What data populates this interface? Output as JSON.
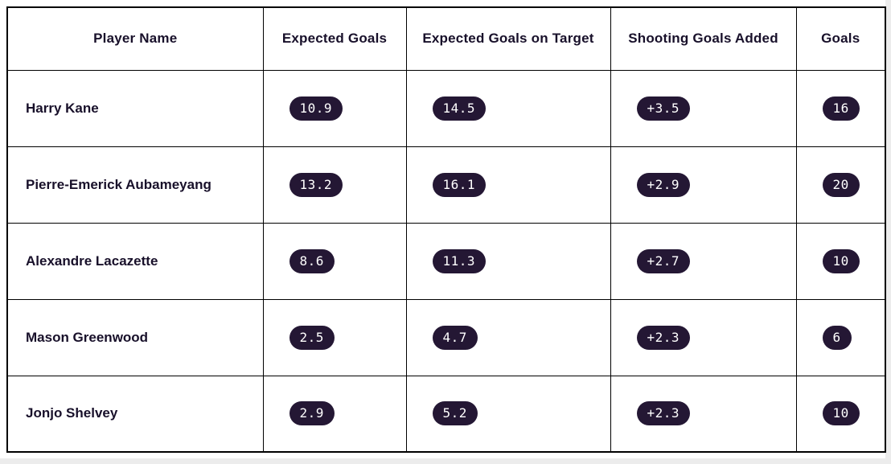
{
  "chart_data": {
    "type": "table",
    "columns": [
      "Player Name",
      "Expected Goals",
      "Expected Goals on Target",
      "Shooting Goals Added",
      "Goals"
    ],
    "rows": [
      {
        "player_name": "Harry Kane",
        "expected_goals": "10.9",
        "expected_goals_on_target": "14.5",
        "shooting_goals_added": "+3.5",
        "goals": "16"
      },
      {
        "player_name": "Pierre-Emerick Aubameyang",
        "expected_goals": "13.2",
        "expected_goals_on_target": "16.1",
        "shooting_goals_added": "+2.9",
        "goals": "20"
      },
      {
        "player_name": "Alexandre Lacazette",
        "expected_goals": "8.6",
        "expected_goals_on_target": "11.3",
        "shooting_goals_added": "+2.7",
        "goals": "10"
      },
      {
        "player_name": "Mason Greenwood",
        "expected_goals": "2.5",
        "expected_goals_on_target": "4.7",
        "shooting_goals_added": "+2.3",
        "goals": "6"
      },
      {
        "player_name": "Jonjo Shelvey",
        "expected_goals": "2.9",
        "expected_goals_on_target": "5.2",
        "shooting_goals_added": "+2.3",
        "goals": "10"
      }
    ]
  },
  "colors": {
    "pill_background": "#241734",
    "pill_text": "#ffffff",
    "border": "#000000",
    "header_text": "#18102a"
  }
}
